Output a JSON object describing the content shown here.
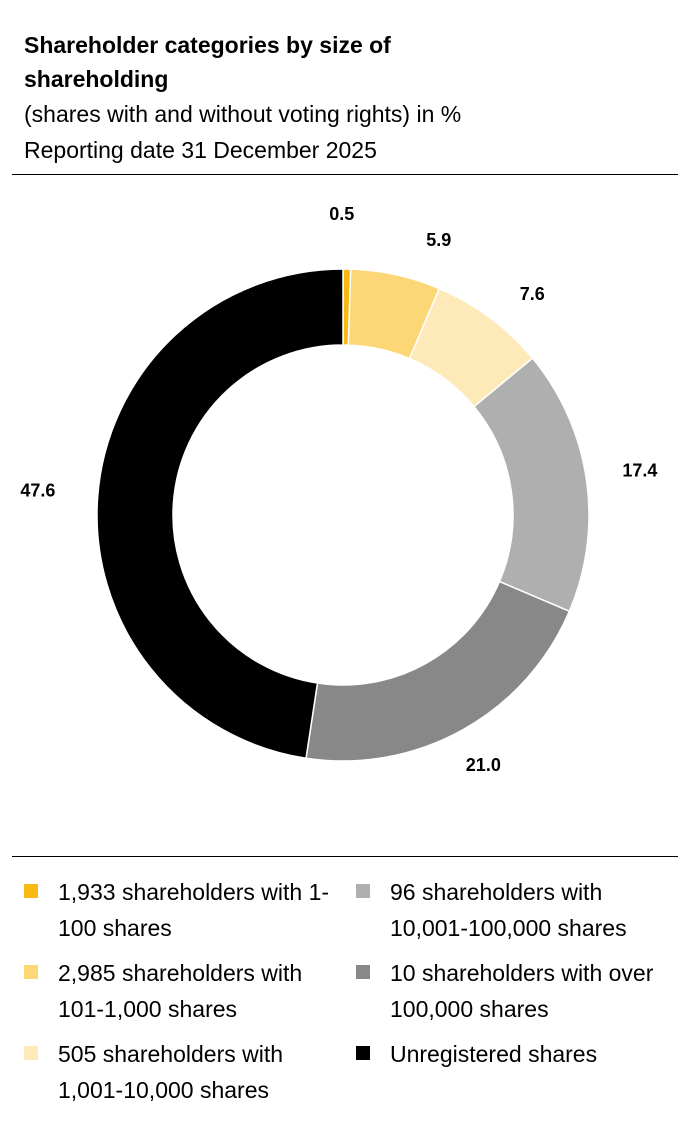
{
  "header": {
    "title": "Shareholder categories by size of shareholding",
    "subtitle": "(shares with and without voting rights) in %",
    "date": "Reporting date  31 December 2025"
  },
  "chart_data": {
    "type": "pie",
    "style": "donut",
    "categories": [
      "1,933 shareholders with 1-100 shares",
      "2,985 shareholders with 101-1,000 shares",
      "505 shareholders with 1,001-10,000 shares",
      "96 shareholders with 10,001-100,000 shares",
      "10 shareholders with over 100,000 shares",
      "Unregistered shares"
    ],
    "values": [
      0.5,
      5.9,
      7.6,
      17.4,
      21.0,
      47.6
    ],
    "value_labels": [
      "0.5",
      "5.9",
      "7.6",
      "17.4",
      "21.0",
      "47.6"
    ],
    "colors": [
      "#F8B913",
      "#FDD775",
      "#FEEAB8",
      "#AFAFAF",
      "#888888",
      "#000000"
    ],
    "start": "top, clockwise",
    "legend_position": "bottom"
  },
  "legend": {
    "items": [
      {
        "label": "1,933 shareholders with 1-100 shares",
        "color": "#F8B913"
      },
      {
        "label": "2,985 shareholders with 101-1,000 shares",
        "color": "#FDD775"
      },
      {
        "label": "505 shareholders with 1,001-10,000 shares",
        "color": "#FEEAB8"
      },
      {
        "label": "96 shareholders with 10,001-100,000 shares",
        "color": "#AFAFAF"
      },
      {
        "label": "10 shareholders with over 100,000 shares",
        "color": "#888888"
      },
      {
        "label": "Unregistered shares",
        "color": "#000000"
      }
    ]
  }
}
